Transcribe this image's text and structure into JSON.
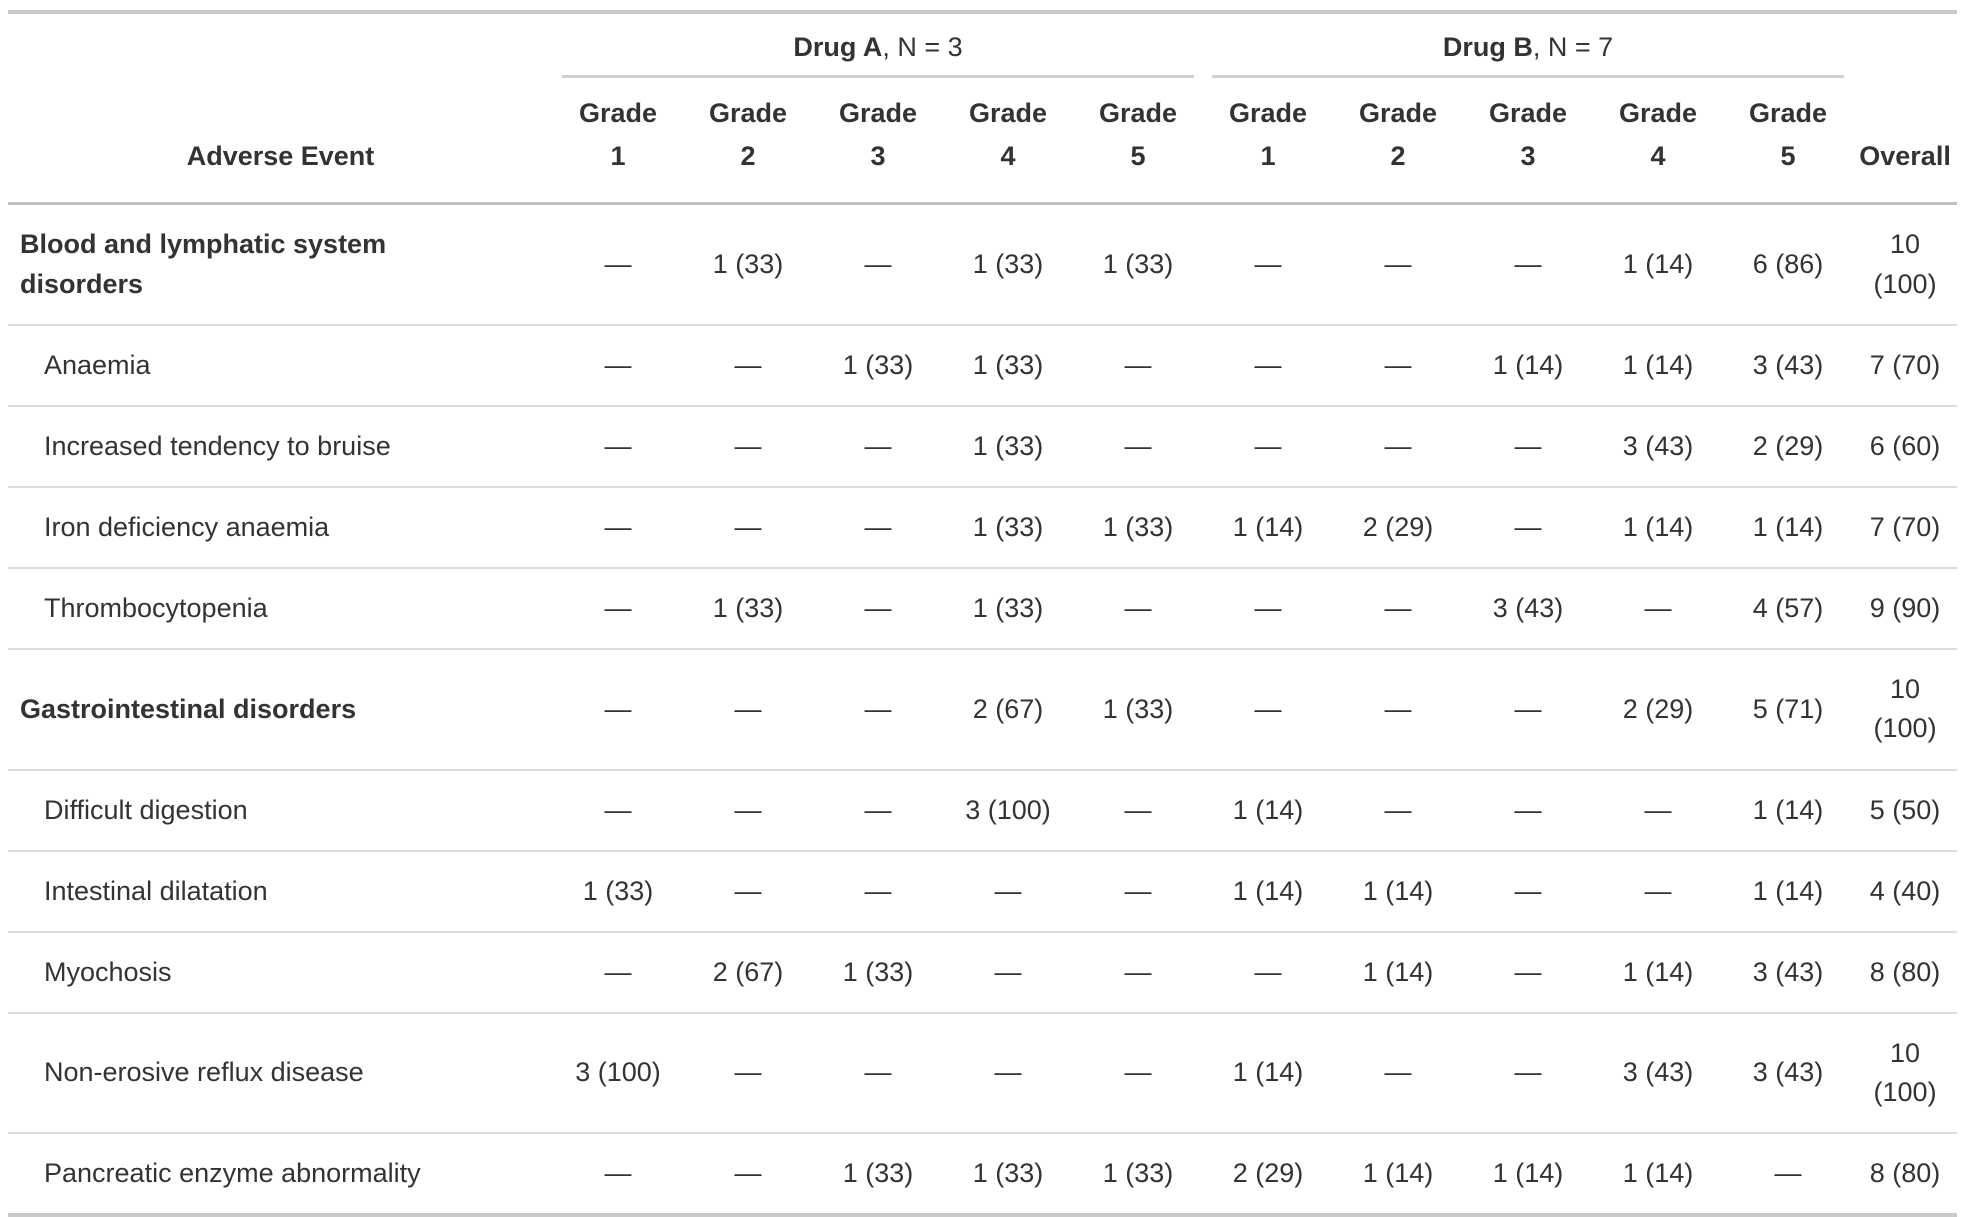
{
  "table": {
    "stub_header": "Adverse Event",
    "overall_header": "Overall",
    "grade_word": "Grade",
    "grade_numbers": [
      "1",
      "2",
      "3",
      "4",
      "5"
    ],
    "groups": [
      {
        "name": "Drug A",
        "suffix": ", N = 3"
      },
      {
        "name": "Drug B",
        "suffix": ", N = 7"
      }
    ],
    "empty_cell": "—",
    "rows": [
      {
        "label": "Blood and lymphatic system disorders",
        "is_category": true,
        "drug_a": [
          "—",
          "1 (33)",
          "—",
          "1 (33)",
          "1 (33)"
        ],
        "drug_b": [
          "—",
          "—",
          "—",
          "1 (14)",
          "6 (86)"
        ],
        "overall": "10 (100)"
      },
      {
        "label": "Anaemia",
        "is_category": false,
        "drug_a": [
          "—",
          "—",
          "1 (33)",
          "1 (33)",
          "—"
        ],
        "drug_b": [
          "—",
          "—",
          "1 (14)",
          "1 (14)",
          "3 (43)"
        ],
        "overall": "7 (70)"
      },
      {
        "label": "Increased tendency to bruise",
        "is_category": false,
        "drug_a": [
          "—",
          "—",
          "—",
          "1 (33)",
          "—"
        ],
        "drug_b": [
          "—",
          "—",
          "—",
          "3 (43)",
          "2 (29)"
        ],
        "overall": "6 (60)"
      },
      {
        "label": "Iron deficiency anaemia",
        "is_category": false,
        "drug_a": [
          "—",
          "—",
          "—",
          "1 (33)",
          "1 (33)"
        ],
        "drug_b": [
          "1 (14)",
          "2 (29)",
          "—",
          "1 (14)",
          "1 (14)"
        ],
        "overall": "7 (70)"
      },
      {
        "label": "Thrombocytopenia",
        "is_category": false,
        "drug_a": [
          "—",
          "1 (33)",
          "—",
          "1 (33)",
          "—"
        ],
        "drug_b": [
          "—",
          "—",
          "3 (43)",
          "—",
          "4 (57)"
        ],
        "overall": "9 (90)"
      },
      {
        "label": "Gastrointestinal disorders",
        "is_category": true,
        "drug_a": [
          "—",
          "—",
          "—",
          "2 (67)",
          "1 (33)"
        ],
        "drug_b": [
          "—",
          "—",
          "—",
          "2 (29)",
          "5 (71)"
        ],
        "overall": "10 (100)"
      },
      {
        "label": "Difficult digestion",
        "is_category": false,
        "drug_a": [
          "—",
          "—",
          "—",
          "3 (100)",
          "—"
        ],
        "drug_b": [
          "1 (14)",
          "—",
          "—",
          "—",
          "1 (14)"
        ],
        "overall": "5 (50)"
      },
      {
        "label": "Intestinal dilatation",
        "is_category": false,
        "drug_a": [
          "1 (33)",
          "—",
          "—",
          "—",
          "—"
        ],
        "drug_b": [
          "1 (14)",
          "1 (14)",
          "—",
          "—",
          "1 (14)"
        ],
        "overall": "4 (40)"
      },
      {
        "label": "Myochosis",
        "is_category": false,
        "drug_a": [
          "—",
          "2 (67)",
          "1 (33)",
          "—",
          "—"
        ],
        "drug_b": [
          "—",
          "1 (14)",
          "—",
          "1 (14)",
          "3 (43)"
        ],
        "overall": "8 (80)"
      },
      {
        "label": "Non-erosive reflux disease",
        "is_category": false,
        "drug_a": [
          "3 (100)",
          "—",
          "—",
          "—",
          "—"
        ],
        "drug_b": [
          "1 (14)",
          "—",
          "—",
          "3 (43)",
          "3 (43)"
        ],
        "overall": "10 (100)"
      },
      {
        "label": "Pancreatic enzyme abnormality",
        "is_category": false,
        "drug_a": [
          "—",
          "—",
          "1 (33)",
          "1 (33)",
          "1 (33)"
        ],
        "drug_b": [
          "2 (29)",
          "1 (14)",
          "1 (14)",
          "1 (14)",
          "—"
        ],
        "overall": "8 (80)"
      }
    ]
  },
  "colors": {
    "text": "#333333",
    "background": "#ffffff",
    "rule_top_bottom": "#c9c9c9",
    "rule_spanner": "#cfcfcf",
    "rule_header_bottom": "#c0c0c0",
    "rule_row_separator": "#dcdcdc"
  }
}
